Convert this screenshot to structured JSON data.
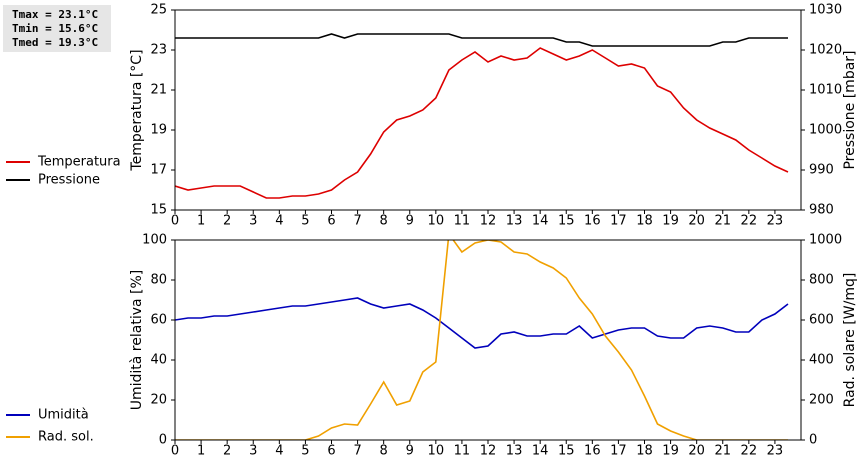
{
  "chart_data": [
    {
      "type": "line",
      "annotations": [
        "Tmax = 23.1°C",
        "Tmin = 15.6°C",
        "Tmed = 19.3°C"
      ],
      "ylabel": "Temperatura [°C]",
      "y2label": "Pressione [mbar]",
      "x": [
        0,
        0.5,
        1,
        1.5,
        2,
        2.5,
        3,
        3.5,
        4,
        4.5,
        5,
        5.5,
        6,
        6.5,
        7,
        7.5,
        8,
        8.5,
        9,
        9.5,
        10,
        10.5,
        11,
        11.5,
        12,
        12.5,
        13,
        13.5,
        14,
        14.5,
        15,
        15.5,
        16,
        16.5,
        17,
        17.5,
        18,
        18.5,
        19,
        19.5,
        20,
        20.5,
        21,
        21.5,
        22,
        22.5,
        23,
        23.5
      ],
      "xlim": [
        0,
        24
      ],
      "xticks": [
        0,
        1,
        2,
        3,
        4,
        5,
        6,
        7,
        8,
        9,
        10,
        11,
        12,
        13,
        14,
        15,
        16,
        17,
        18,
        19,
        20,
        21,
        22,
        23
      ],
      "ylim": [
        15,
        25
      ],
      "yticks": [
        15,
        17,
        19,
        21,
        23,
        25
      ],
      "y2lim": [
        980,
        1030
      ],
      "y2ticks": [
        980,
        990,
        1000,
        1010,
        1020,
        1030
      ],
      "series": [
        {
          "name": "Temperatura",
          "color": "#dd0000",
          "values": [
            16.2,
            16.0,
            16.1,
            16.2,
            16.2,
            16.2,
            15.9,
            15.6,
            15.6,
            15.7,
            15.7,
            15.8,
            16.0,
            16.5,
            16.9,
            17.8,
            18.9,
            19.5,
            19.7,
            20.0,
            20.6,
            22.0,
            22.5,
            22.9,
            22.4,
            22.7,
            22.5,
            22.6,
            23.1,
            22.8,
            22.5,
            22.7,
            23.0,
            22.6,
            22.2,
            22.3,
            22.1,
            21.2,
            20.9,
            20.1,
            19.5,
            19.1,
            18.8,
            18.5,
            18.0,
            17.6,
            17.2,
            16.9
          ]
        },
        {
          "name": "Pressione",
          "color": "#000000",
          "axis": "y2",
          "values": [
            1023,
            1023,
            1023,
            1023,
            1023,
            1023,
            1023,
            1023,
            1023,
            1023,
            1023,
            1023,
            1024,
            1023,
            1024,
            1024,
            1024,
            1024,
            1024,
            1024,
            1024,
            1024,
            1023,
            1023,
            1023,
            1023,
            1023,
            1023,
            1023,
            1023,
            1022,
            1022,
            1021,
            1021,
            1021,
            1021,
            1021,
            1021,
            1021,
            1021,
            1021,
            1021,
            1022,
            1022,
            1023,
            1023,
            1023,
            1023
          ]
        }
      ]
    },
    {
      "type": "line",
      "ylabel": "Umidità relativa [%]",
      "y2label": "Rad. solare [W/mq]",
      "x": [
        0,
        0.5,
        1,
        1.5,
        2,
        2.5,
        3,
        3.5,
        4,
        4.5,
        5,
        5.5,
        6,
        6.5,
        7,
        7.5,
        8,
        8.5,
        9,
        9.5,
        10,
        10.5,
        11,
        11.5,
        12,
        12.5,
        13,
        13.5,
        14,
        14.5,
        15,
        15.5,
        16,
        16.5,
        17,
        17.5,
        18,
        18.5,
        19,
        19.5,
        20,
        20.5,
        21,
        21.5,
        22,
        22.5,
        23,
        23.5
      ],
      "xlim": [
        0,
        24
      ],
      "xticks": [
        0,
        1,
        2,
        3,
        4,
        5,
        6,
        7,
        8,
        9,
        10,
        11,
        12,
        13,
        14,
        15,
        16,
        17,
        18,
        19,
        20,
        21,
        22,
        23
      ],
      "ylim": [
        0,
        100
      ],
      "yticks": [
        0,
        20,
        40,
        60,
        80,
        100
      ],
      "y2lim": [
        0,
        1000
      ],
      "y2ticks": [
        0,
        200,
        400,
        600,
        800,
        1000
      ],
      "series": [
        {
          "name": "Umidità",
          "color": "#0000bb",
          "values": [
            60,
            61,
            61,
            62,
            62,
            63,
            64,
            65,
            66,
            67,
            67,
            68,
            69,
            70,
            71,
            68,
            66,
            67,
            68,
            65,
            61,
            56,
            51,
            46,
            47,
            53,
            54,
            52,
            52,
            53,
            53,
            57,
            51,
            53,
            55,
            56,
            56,
            52,
            51,
            51,
            56,
            57,
            56,
            54,
            54,
            60,
            63,
            68
          ]
        },
        {
          "name": "Rad. sol.",
          "color": "#f0a000",
          "axis": "y2",
          "values": [
            0,
            0,
            0,
            0,
            0,
            0,
            0,
            0,
            0,
            0,
            0,
            20,
            60,
            80,
            75,
            180,
            290,
            175,
            195,
            340,
            390,
            1030,
            940,
            985,
            1000,
            990,
            940,
            930,
            890,
            860,
            810,
            710,
            630,
            520,
            440,
            350,
            220,
            80,
            45,
            20,
            0,
            0,
            0,
            0,
            0,
            0,
            0,
            0
          ]
        }
      ]
    }
  ]
}
